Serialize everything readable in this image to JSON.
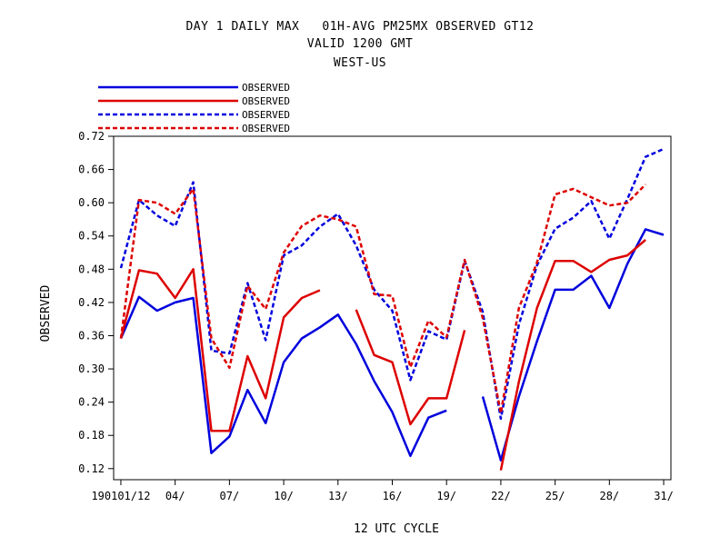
{
  "title": {
    "line1": "DAY 1 DAILY MAX   01H-AVG PM25MX OBSERVED GT12",
    "line2": "VALID 1200 GMT",
    "line3": "WEST-US"
  },
  "chart_data": {
    "type": "line",
    "title": "DAY 1 DAILY MAX   01H-AVG PM25MX OBSERVED GT12",
    "subtitle": "VALID 1200 GMT",
    "region": "WEST-US",
    "xlabel": "12 UTC CYCLE",
    "ylabel": "OBSERVED",
    "ylim": [
      0.1,
      0.72
    ],
    "xlim": [
      0.6,
      31.4
    ],
    "x_ticks": [
      1,
      4,
      7,
      10,
      13,
      16,
      19,
      22,
      25,
      28,
      31
    ],
    "x_tick_labels": [
      "190101/12",
      "04/",
      "07/",
      "10/",
      "13/",
      "16/",
      "19/",
      "22/",
      "25/",
      "28/",
      "31/"
    ],
    "y_ticks": [
      0.12,
      0.18,
      0.24,
      0.3,
      0.36,
      0.42,
      0.48,
      0.54,
      0.6,
      0.66,
      0.72
    ],
    "y_tick_labels": [
      "0.12",
      "0.18",
      "0.24",
      "0.30",
      "0.36",
      "0.42",
      "0.48",
      "0.54",
      "0.60",
      "0.66",
      "0.72"
    ],
    "legend_position": "top-left",
    "grid": false,
    "x": [
      1,
      2,
      3,
      4,
      5,
      6,
      7,
      8,
      9,
      10,
      11,
      12,
      13,
      14,
      15,
      16,
      17,
      18,
      19,
      20,
      21,
      22,
      23,
      24,
      25,
      26,
      27,
      28,
      29,
      30,
      31
    ],
    "series": [
      {
        "name": "OBSERVED",
        "color": "#0000dd",
        "style": "solid",
        "values": [
          0.355,
          0.43,
          0.405,
          0.42,
          0.428,
          0.148,
          0.178,
          0.262,
          0.202,
          0.312,
          0.355,
          0.375,
          0.398,
          0.345,
          0.278,
          0.222,
          0.143,
          0.212,
          0.225,
          null,
          0.25,
          0.135,
          0.25,
          0.35,
          0.443,
          0.443,
          0.468,
          0.41,
          0.49,
          0.552,
          0.542
        ]
      },
      {
        "name": "OBSERVED",
        "color": "#dd0000",
        "style": "solid",
        "values": [
          0.355,
          0.478,
          0.472,
          0.428,
          0.48,
          0.188,
          0.188,
          0.323,
          0.247,
          0.393,
          0.428,
          0.442,
          null,
          0.407,
          0.325,
          0.312,
          0.2,
          0.247,
          0.247,
          0.37,
          null,
          0.117,
          0.277,
          0.41,
          0.495,
          0.495,
          0.475,
          0.497,
          0.505,
          0.533,
          null
        ]
      },
      {
        "name": "OBSERVED",
        "color": "#0000dd",
        "style": "dashed",
        "values": [
          0.482,
          0.605,
          0.577,
          0.558,
          0.637,
          0.333,
          0.328,
          0.455,
          0.352,
          0.505,
          0.523,
          0.557,
          0.58,
          0.523,
          0.443,
          0.405,
          0.28,
          0.368,
          0.353,
          0.495,
          0.403,
          0.21,
          0.38,
          0.487,
          0.553,
          0.573,
          0.603,
          0.535,
          0.607,
          0.683,
          0.697
        ]
      },
      {
        "name": "OBSERVED",
        "color": "#dd0000",
        "style": "dashed",
        "values": [
          0.355,
          0.605,
          0.6,
          0.58,
          0.625,
          0.355,
          0.302,
          0.45,
          0.408,
          0.51,
          0.558,
          0.577,
          0.57,
          0.557,
          0.435,
          0.432,
          0.303,
          0.387,
          0.357,
          0.497,
          0.392,
          0.22,
          0.41,
          0.492,
          0.615,
          0.625,
          0.61,
          0.595,
          0.6,
          0.633,
          null
        ]
      }
    ]
  }
}
